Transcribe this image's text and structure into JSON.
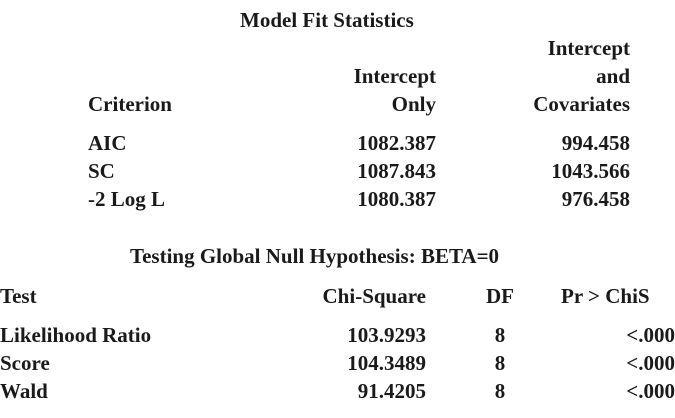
{
  "fit": {
    "title": "Model Fit Statistics",
    "headers": {
      "criterion": "Criterion",
      "intercept_only_line1": "Intercept",
      "intercept_only_line2": "Only",
      "covariates_line1": "Intercept",
      "covariates_line2": "and",
      "covariates_line3": "Covariates"
    },
    "rows": [
      {
        "criterion": "AIC",
        "intercept_only": "1082.387",
        "covariates": "994.458"
      },
      {
        "criterion": "SC",
        "intercept_only": "1087.843",
        "covariates": "1043.566"
      },
      {
        "criterion": "-2 Log L",
        "intercept_only": "1080.387",
        "covariates": "976.458"
      }
    ]
  },
  "global": {
    "title": "Testing Global Null Hypothesis: BETA=0",
    "headers": {
      "test": "Test",
      "chisq": "Chi-Square",
      "df": "DF",
      "p": "Pr > ChiS"
    },
    "rows": [
      {
        "test": "Likelihood Ratio",
        "chisq": "103.9293",
        "df": "8",
        "p": "<.000"
      },
      {
        "test": "Score",
        "chisq": "104.3489",
        "df": "8",
        "p": "<.000"
      },
      {
        "test": "Wald",
        "chisq": "91.4205",
        "df": "8",
        "p": "<.000"
      }
    ]
  }
}
